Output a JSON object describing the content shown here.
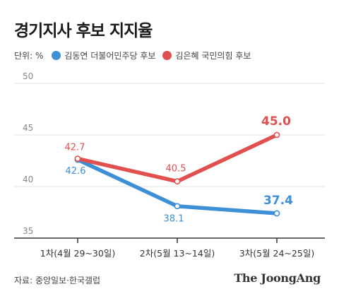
{
  "title": "경기지사 후보 지지율",
  "unit_label": "단위: %",
  "source": "자료: 중앙일보·한국갤럽",
  "brand": "The JoongAng",
  "chart_data": {
    "type": "line",
    "categories": [
      "1차(4월 29~30일)",
      "2차(5월 13~14일)",
      "3차(5월 24~25일)"
    ],
    "series": [
      {
        "name": "김동연 더불어민주당 후보",
        "color": "#3d8fd6",
        "values": [
          42.6,
          38.1,
          37.4
        ]
      },
      {
        "name": "김은혜 국민의힘 후보",
        "color": "#e0504f",
        "values": [
          42.7,
          40.5,
          45.0
        ]
      }
    ],
    "y_ticks": [
      35,
      40,
      45,
      50
    ],
    "tick_labels": [
      "35",
      "40",
      "45",
      "50"
    ],
    "ylim": [
      35,
      50
    ],
    "value_labels": {
      "blue": [
        "42.6",
        "38.1",
        "37.4"
      ],
      "red": [
        "42.7",
        "40.5",
        "45.0"
      ]
    },
    "grid": true,
    "legend_position": "top-left"
  }
}
